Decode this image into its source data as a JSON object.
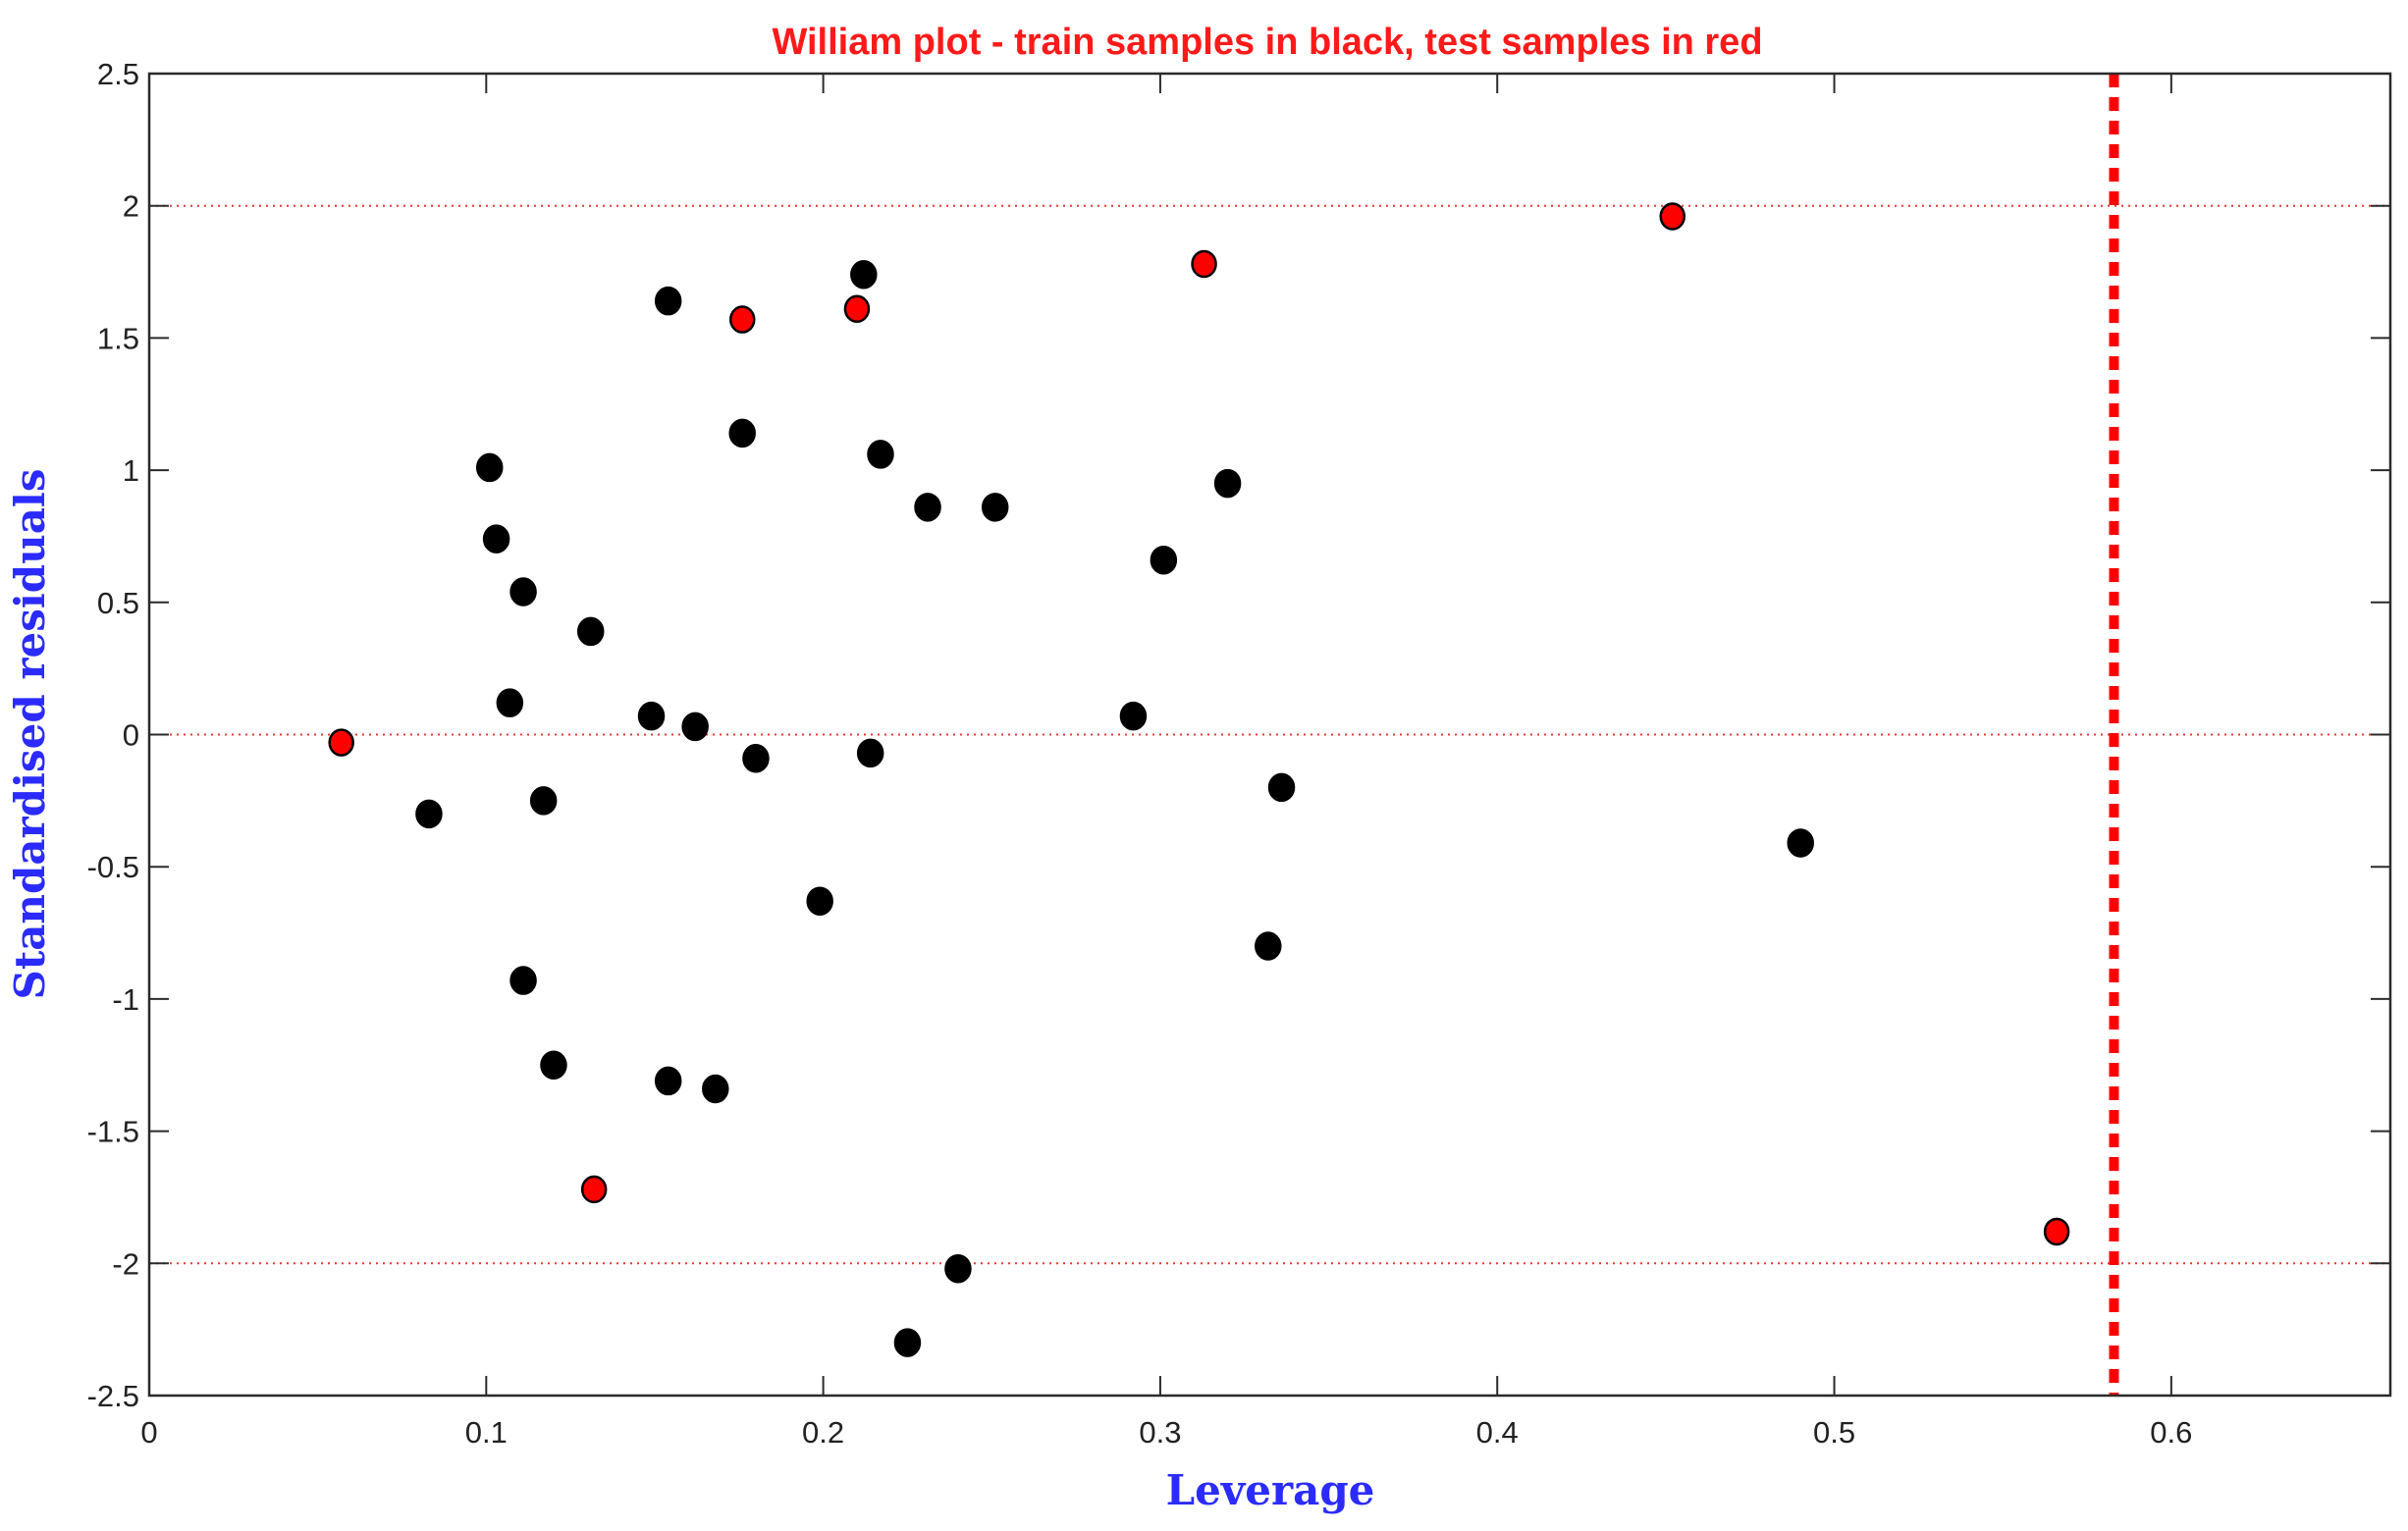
{
  "chart_data": {
    "type": "scatter",
    "title": "William plot - train samples in black, test samples in red",
    "xlabel": "Leverage",
    "ylabel": "Standardised residuals",
    "xlim": [
      0,
      0.665
    ],
    "ylim": [
      -2.5,
      2.5
    ],
    "xticks": [
      0,
      0.1,
      0.2,
      0.3,
      0.4,
      0.5,
      0.6
    ],
    "xtick_labels": [
      "0",
      "0.1",
      "0.2",
      "0.3",
      "0.4",
      "0.5",
      "0.6"
    ],
    "yticks": [
      2.5,
      2,
      1.5,
      1,
      0.5,
      0,
      -0.5,
      -1,
      -1.5,
      -2,
      -2.5
    ],
    "ytick_labels": [
      "2.5",
      "2",
      "1.5",
      "1",
      "0.5",
      "0",
      "-0.5",
      "-1",
      "-1.5",
      "-2",
      "-2.5"
    ],
    "reference_lines": {
      "horizontal": [
        2,
        0,
        -2
      ],
      "vertical": [
        0.583
      ]
    },
    "grid": false,
    "legend": "none",
    "colors": {
      "train": "#000000",
      "test": "#ff0000",
      "reference": "#e53935",
      "title": "#ff1a1a",
      "axis_label": "#2b2bff"
    },
    "series": [
      {
        "points": [
          {
            "x": 0.083,
            "y": -0.3
          },
          {
            "x": 0.101,
            "y": 1.01
          },
          {
            "x": 0.103,
            "y": 0.74
          },
          {
            "x": 0.107,
            "y": 0.12
          },
          {
            "x": 0.111,
            "y": 0.54
          },
          {
            "x": 0.111,
            "y": -0.93
          },
          {
            "x": 0.117,
            "y": -0.25
          },
          {
            "x": 0.12,
            "y": -1.25
          },
          {
            "x": 0.131,
            "y": 0.39
          },
          {
            "x": 0.149,
            "y": 0.07
          },
          {
            "x": 0.154,
            "y": 1.64
          },
          {
            "x": 0.154,
            "y": -1.31
          },
          {
            "x": 0.162,
            "y": 0.03
          },
          {
            "x": 0.168,
            "y": -1.34
          },
          {
            "x": 0.176,
            "y": 1.14
          },
          {
            "x": 0.18,
            "y": -0.09
          },
          {
            "x": 0.199,
            "y": -0.63
          },
          {
            "x": 0.212,
            "y": 1.74
          },
          {
            "x": 0.214,
            "y": -0.07
          },
          {
            "x": 0.217,
            "y": 1.06
          },
          {
            "x": 0.225,
            "y": -2.3
          },
          {
            "x": 0.231,
            "y": 0.86
          },
          {
            "x": 0.24,
            "y": -2.02
          },
          {
            "x": 0.251,
            "y": 0.86
          },
          {
            "x": 0.292,
            "y": 0.07
          },
          {
            "x": 0.301,
            "y": 0.66
          },
          {
            "x": 0.32,
            "y": 0.95
          },
          {
            "x": 0.332,
            "y": -0.8
          },
          {
            "x": 0.336,
            "y": -0.2
          },
          {
            "x": 0.49,
            "y": -0.41
          }
        ]
      },
      {
        "points": [
          {
            "x": 0.057,
            "y": -0.03
          },
          {
            "x": 0.132,
            "y": -1.72
          },
          {
            "x": 0.176,
            "y": 1.57
          },
          {
            "x": 0.21,
            "y": 1.61
          },
          {
            "x": 0.313,
            "y": 1.78
          },
          {
            "x": 0.452,
            "y": 1.96
          },
          {
            "x": 0.566,
            "y": -1.88
          }
        ]
      }
    ]
  }
}
